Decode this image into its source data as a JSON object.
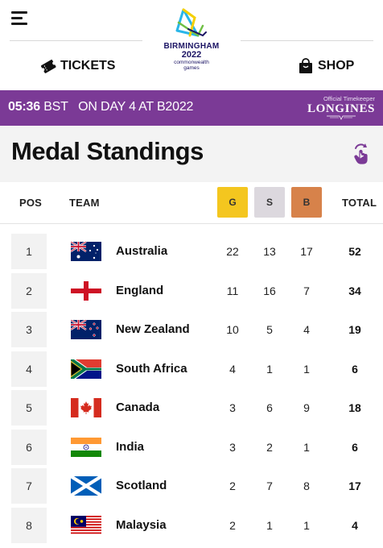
{
  "header": {
    "logo": {
      "line1": "BIRMINGHAM",
      "line2": "2022",
      "line3": "commonwealth",
      "line4": "games"
    },
    "tickets_label": "TICKETS",
    "shop_label": "SHOP",
    "icons": {
      "menu": "hamburger-menu-icon",
      "tickets": "ticket-icon",
      "shop": "shopping-bag-icon"
    }
  },
  "timebar": {
    "time": "05:36",
    "zone": "BST",
    "day_text": "ON DAY 4 AT B2022",
    "keeper_label": "Official Timekeeper",
    "keeper_brand": "LONGINES"
  },
  "page": {
    "title": "Medal Standings",
    "share_icon": "tap-share-icon"
  },
  "columns": {
    "pos": "POS",
    "team": "TEAM",
    "gold": "G",
    "silver": "S",
    "bronze": "B",
    "total": "TOTAL"
  },
  "colors": {
    "purple": "#7b3a96",
    "gold": "#f4c61f",
    "silver": "#dcd8de",
    "bronze": "#d7824a"
  },
  "standings": [
    {
      "pos": "1",
      "team": "Australia",
      "flag": "australia-flag",
      "g": "22",
      "s": "13",
      "b": "17",
      "total": "52"
    },
    {
      "pos": "2",
      "team": "England",
      "flag": "england-flag",
      "g": "11",
      "s": "16",
      "b": "7",
      "total": "34"
    },
    {
      "pos": "3",
      "team": "New Zealand",
      "flag": "new-zealand-flag",
      "g": "10",
      "s": "5",
      "b": "4",
      "total": "19"
    },
    {
      "pos": "4",
      "team": "South Africa",
      "flag": "south-africa-flag",
      "g": "4",
      "s": "1",
      "b": "1",
      "total": "6"
    },
    {
      "pos": "5",
      "team": "Canada",
      "flag": "canada-flag",
      "g": "3",
      "s": "6",
      "b": "9",
      "total": "18"
    },
    {
      "pos": "6",
      "team": "India",
      "flag": "india-flag",
      "g": "3",
      "s": "2",
      "b": "1",
      "total": "6"
    },
    {
      "pos": "7",
      "team": "Scotland",
      "flag": "scotland-flag",
      "g": "2",
      "s": "7",
      "b": "8",
      "total": "17"
    },
    {
      "pos": "8",
      "team": "Malaysia",
      "flag": "malaysia-flag",
      "g": "2",
      "s": "1",
      "b": "1",
      "total": "4"
    }
  ]
}
